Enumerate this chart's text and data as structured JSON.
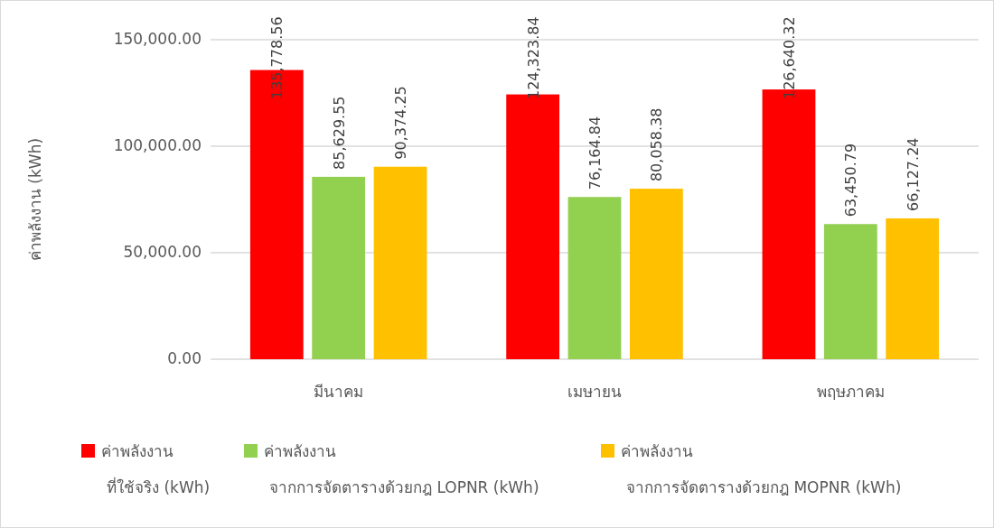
{
  "chart_data": {
    "type": "bar",
    "ylabel": "ค่าพลังงาน (kWh)",
    "categories": [
      "มีนาคม",
      "เมษายน",
      "พฤษภาคม"
    ],
    "series": [
      {
        "name": "ค่าพลังงาน\nที่ใช้จริง (kWh)",
        "color": "#ff0000",
        "values": [
          135778.56,
          124323.84,
          126640.32
        ],
        "value_labels": [
          "135,778.56",
          "124,323.84",
          "126,640.32"
        ]
      },
      {
        "name": "ค่าพลังงาน\nจากการจัดตารางด้วยกฎ LOPNR (kWh)",
        "color": "#92d050",
        "values": [
          85629.55,
          76164.84,
          63450.79
        ],
        "value_labels": [
          "85,629.55",
          "76,164.84",
          "63,450.79"
        ]
      },
      {
        "name": "ค่าพลังงาน\nจากการจัดตารางด้วยกฎ MOPNR (kWh)",
        "color": "#ffc000",
        "values": [
          90374.25,
          80058.38,
          66127.24
        ],
        "value_labels": [
          "90,374.25",
          "80,058.38",
          "66,127.24"
        ]
      }
    ],
    "ylim": [
      0,
      150000
    ],
    "yticks": [
      {
        "value": 0,
        "label": "0.00"
      },
      {
        "value": 50000,
        "label": "50,000.00"
      },
      {
        "value": 100000,
        "label": "100,000.00"
      },
      {
        "value": 150000,
        "label": "150,000.00"
      }
    ],
    "grid": "y",
    "legend": "bottom"
  }
}
